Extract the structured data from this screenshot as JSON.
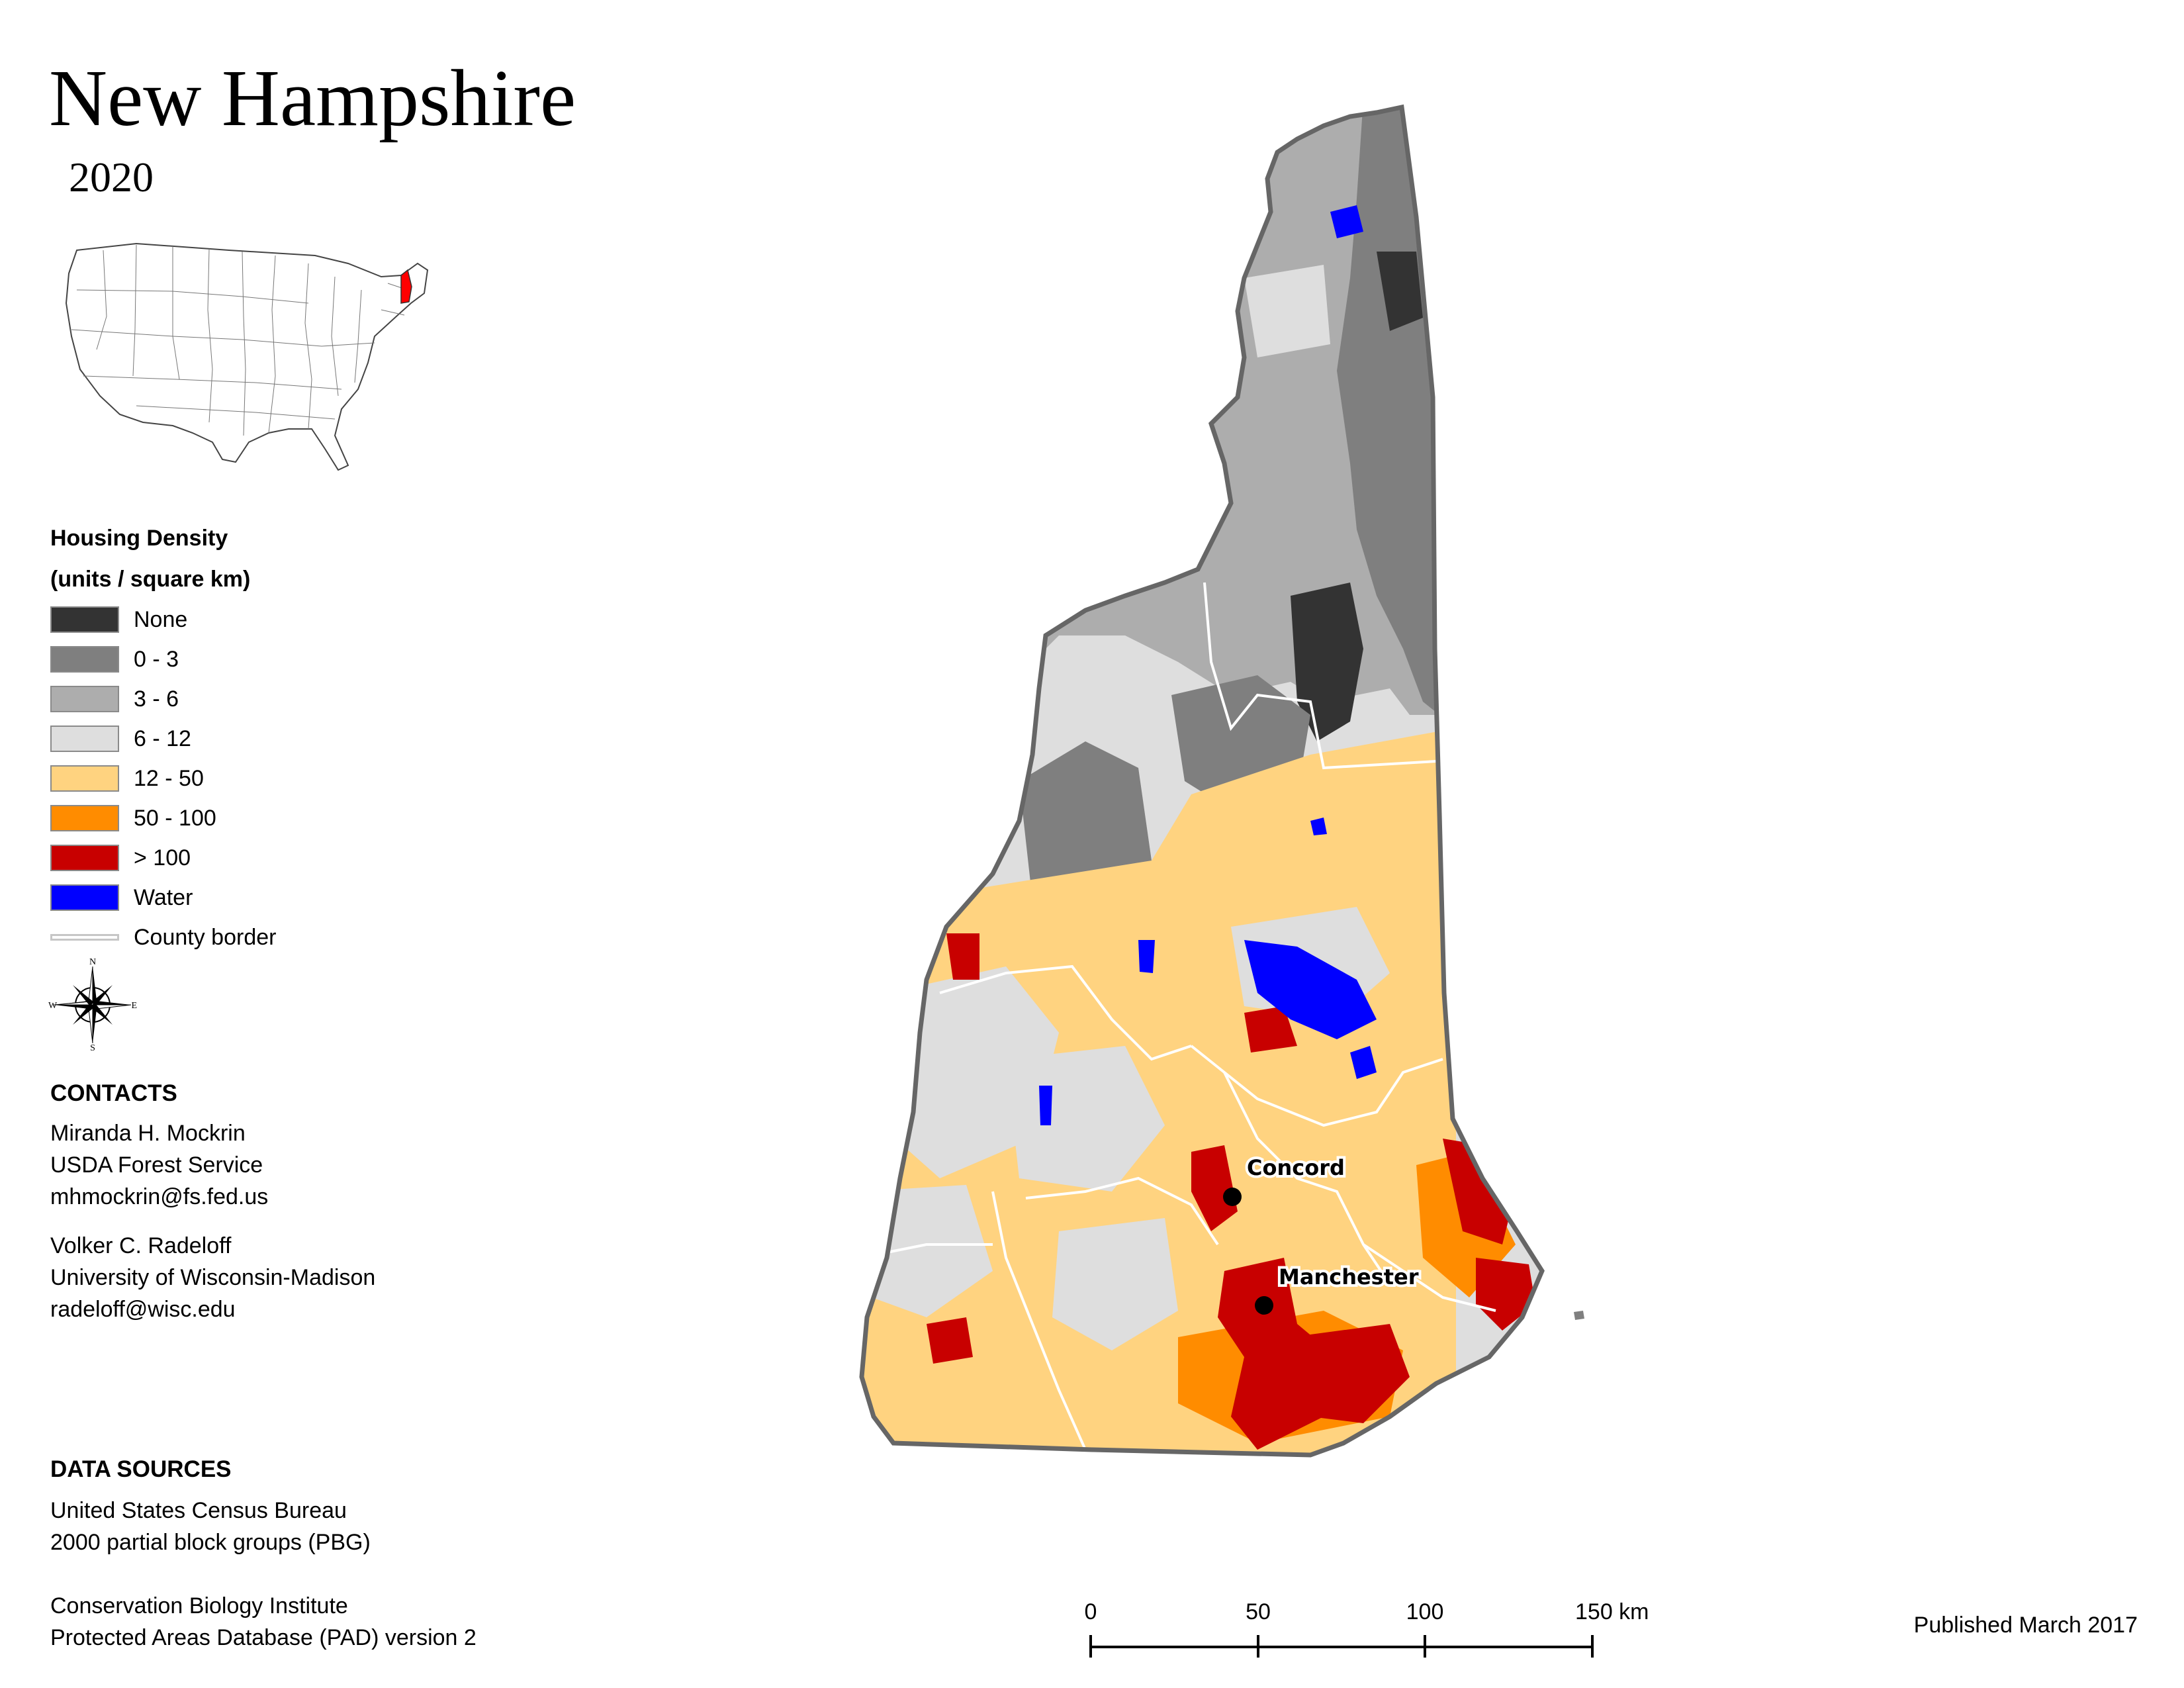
{
  "title": "New Hampshire",
  "subtitle": "2020",
  "locator_map": {
    "highlighted_state": "New Hampshire",
    "highlight_color": "#ff0000"
  },
  "legend": {
    "title_line1": "Housing Density",
    "title_line2": "(units / square km)",
    "items": [
      {
        "label": "None",
        "color": "#333333"
      },
      {
        "label": "0 - 3",
        "color": "#7f7f7f"
      },
      {
        "label": "3 - 6",
        "color": "#adadad"
      },
      {
        "label": "6 - 12",
        "color": "#dedede"
      },
      {
        "label": "12 - 50",
        "color": "#ffd380"
      },
      {
        "label": "50 - 100",
        "color": "#ff8c00"
      },
      {
        "label": "> 100",
        "color": "#c80000"
      },
      {
        "label": "Water",
        "color": "#0000ff"
      },
      {
        "label": "County border",
        "color": "#c6c6c6"
      }
    ]
  },
  "compass": {
    "n": "N",
    "s": "S",
    "e": "E",
    "w": "W"
  },
  "contacts": {
    "heading": "CONTACTS",
    "person1": {
      "name": "Miranda H. Mockrin",
      "org": "USDA Forest Service",
      "email": "mhmockrin@fs.fed.us"
    },
    "person2": {
      "name": "Volker C. Radeloff",
      "org": "University of Wisconsin-Madison",
      "email": "radeloff@wisc.edu"
    }
  },
  "data_sources": {
    "heading": "DATA SOURCES",
    "source1_line1": "United States Census Bureau",
    "source1_line2": "2000 partial block groups (PBG)",
    "source2_line1": "Conservation Biology Institute",
    "source2_line2": "Protected Areas Database (PAD) version 2"
  },
  "cities": [
    {
      "name": "Concord"
    },
    {
      "name": "Manchester"
    }
  ],
  "scale_bar": {
    "ticks": [
      "0",
      "50",
      "100",
      "150 km"
    ]
  },
  "published": "Published March 2017"
}
